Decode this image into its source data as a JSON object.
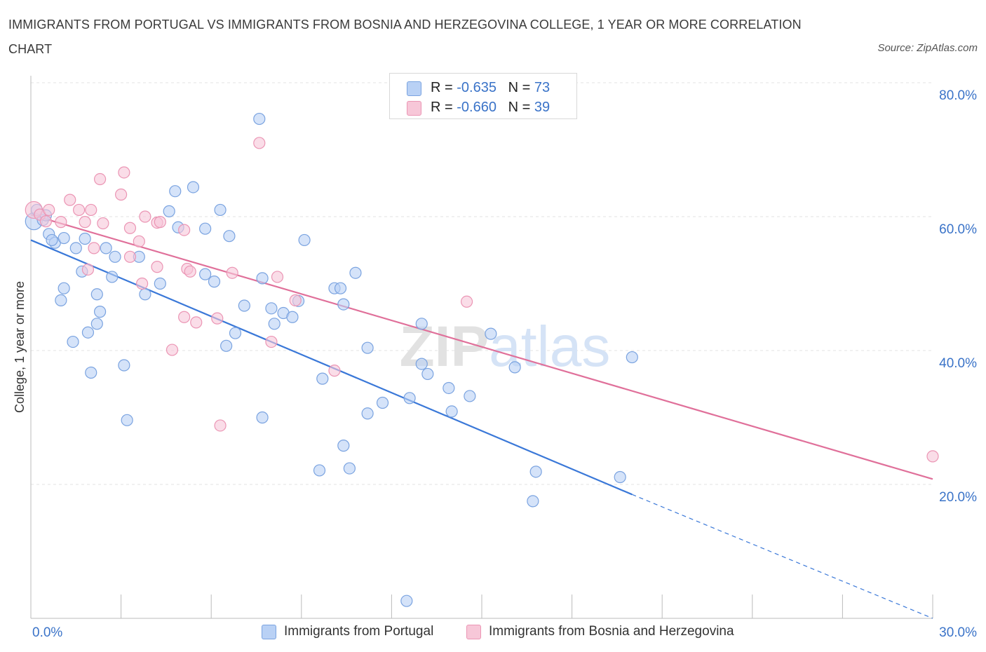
{
  "title": "IMMIGRANTS FROM PORTUGAL VS IMMIGRANTS FROM BOSNIA AND HERZEGOVINA COLLEGE, 1 YEAR OR MORE CORRELATION CHART",
  "source": "Source: ZipAtlas.com",
  "colors": {
    "blue": "#3a78d8",
    "blue_fill": "#b9d1f5",
    "blue_stroke": "#7aa3e0",
    "pink": "#e0709a",
    "pink_fill": "#f7c7d8",
    "pink_stroke": "#eb95b4",
    "tick_label": "#3a73c8",
    "grid": "#e3e3e3"
  },
  "legend": {
    "rows": [
      {
        "r_label": "R = ",
        "r_value": "-0.635",
        "n_label": "N = ",
        "n_value": "73"
      },
      {
        "r_label": "R = ",
        "r_value": "-0.660",
        "n_label": "N = ",
        "n_value": "39"
      }
    ]
  },
  "bottom_legend": [
    "Immigrants from Portugal",
    "Immigrants from Bosnia and Herzegovina"
  ],
  "chart_data": {
    "type": "scatter",
    "title": "IMMIGRANTS FROM PORTUGAL VS IMMIGRANTS FROM BOSNIA AND HERZEGOVINA COLLEGE, 1 YEAR OR MORE CORRELATION CHART",
    "xlabel": "",
    "ylabel": "College, 1 year or more",
    "xlim": [
      0,
      30
    ],
    "ylim": [
      0,
      80
    ],
    "x_tick_labels": [
      "0.0%",
      "30.0%"
    ],
    "y_ticks": [
      20,
      40,
      60,
      80
    ],
    "y_tick_labels": [
      "20.0%",
      "40.0%",
      "60.0%",
      "80.0%"
    ],
    "grid": true,
    "watermark": "ZIPatlas",
    "series": [
      {
        "name": "Immigrants from Portugal",
        "color": "#3a78d8",
        "trend": {
          "x0": 0,
          "y0": 56.5,
          "x1": 20,
          "y1": 18.5,
          "dashed_to_x": 30,
          "dashed_to_y": 0
        },
        "points": [
          [
            0.1,
            59.3
          ],
          [
            0.2,
            61.0
          ],
          [
            0.4,
            59.5
          ],
          [
            0.5,
            60.2
          ],
          [
            0.6,
            57.4
          ],
          [
            0.8,
            56.1
          ],
          [
            0.7,
            56.5
          ],
          [
            1.1,
            56.8
          ],
          [
            1.5,
            55.3
          ],
          [
            1.8,
            56.7
          ],
          [
            2.5,
            55.3
          ],
          [
            1.7,
            51.8
          ],
          [
            2.8,
            54.0
          ],
          [
            3.6,
            54.0
          ],
          [
            2.7,
            51.0
          ],
          [
            3.8,
            48.4
          ],
          [
            4.3,
            50.0
          ],
          [
            4.6,
            60.8
          ],
          [
            4.8,
            63.8
          ],
          [
            4.9,
            58.4
          ],
          [
            5.4,
            64.4
          ],
          [
            5.8,
            58.2
          ],
          [
            6.3,
            61.0
          ],
          [
            6.6,
            57.1
          ],
          [
            5.8,
            51.4
          ],
          [
            6.1,
            50.3
          ],
          [
            1.1,
            49.3
          ],
          [
            1.0,
            47.5
          ],
          [
            2.2,
            48.4
          ],
          [
            2.3,
            45.8
          ],
          [
            2.2,
            44.0
          ],
          [
            1.9,
            42.7
          ],
          [
            1.4,
            41.3
          ],
          [
            2.0,
            36.7
          ],
          [
            3.1,
            37.8
          ],
          [
            3.2,
            29.6
          ],
          [
            6.5,
            40.7
          ],
          [
            6.8,
            42.6
          ],
          [
            7.1,
            46.7
          ],
          [
            7.7,
            50.8
          ],
          [
            7.7,
            30.0
          ],
          [
            8.0,
            46.3
          ],
          [
            8.1,
            44.0
          ],
          [
            8.4,
            45.6
          ],
          [
            8.7,
            45.0
          ],
          [
            8.9,
            47.4
          ],
          [
            9.1,
            56.5
          ],
          [
            9.7,
            35.8
          ],
          [
            10.1,
            49.3
          ],
          [
            10.3,
            49.3
          ],
          [
            10.4,
            46.9
          ],
          [
            10.8,
            51.6
          ],
          [
            11.2,
            40.4
          ],
          [
            10.4,
            25.8
          ],
          [
            10.6,
            22.4
          ],
          [
            7.6,
            74.6
          ],
          [
            9.6,
            22.1
          ],
          [
            11.7,
            32.2
          ],
          [
            11.2,
            30.6
          ],
          [
            12.6,
            32.9
          ],
          [
            13.0,
            38.0
          ],
          [
            13.2,
            36.5
          ],
          [
            13.9,
            34.4
          ],
          [
            14.0,
            30.9
          ],
          [
            13.0,
            44.0
          ],
          [
            14.6,
            33.2
          ],
          [
            15.3,
            42.5
          ],
          [
            16.1,
            37.5
          ],
          [
            16.8,
            21.9
          ],
          [
            16.7,
            17.5
          ],
          [
            19.6,
            21.1
          ],
          [
            20.0,
            39.0
          ],
          [
            12.5,
            2.6
          ]
        ]
      },
      {
        "name": "Immigrants from Bosnia and Herzegovina",
        "color": "#e0709a",
        "trend": {
          "x0": 0,
          "y0": 60.3,
          "x1": 30,
          "y1": 20.8
        },
        "points": [
          [
            0.1,
            61.0
          ],
          [
            0.3,
            60.3
          ],
          [
            0.5,
            59.3
          ],
          [
            1.0,
            59.2
          ],
          [
            0.6,
            61.0
          ],
          [
            1.3,
            62.5
          ],
          [
            1.6,
            61.0
          ],
          [
            1.8,
            59.2
          ],
          [
            2.0,
            61.0
          ],
          [
            2.3,
            65.6
          ],
          [
            2.4,
            59.0
          ],
          [
            3.0,
            63.3
          ],
          [
            3.1,
            66.6
          ],
          [
            3.3,
            58.3
          ],
          [
            3.6,
            56.3
          ],
          [
            3.8,
            60.0
          ],
          [
            4.2,
            59.1
          ],
          [
            2.1,
            55.3
          ],
          [
            1.9,
            52.1
          ],
          [
            3.3,
            54.0
          ],
          [
            3.7,
            50.0
          ],
          [
            4.2,
            52.5
          ],
          [
            4.3,
            59.2
          ],
          [
            5.1,
            58.0
          ],
          [
            5.2,
            52.2
          ],
          [
            5.3,
            51.8
          ],
          [
            5.1,
            45.0
          ],
          [
            4.7,
            40.1
          ],
          [
            5.5,
            44.2
          ],
          [
            6.2,
            44.8
          ],
          [
            6.7,
            51.6
          ],
          [
            6.3,
            28.8
          ],
          [
            7.6,
            71.0
          ],
          [
            8.2,
            51.0
          ],
          [
            8.0,
            41.3
          ],
          [
            8.8,
            47.5
          ],
          [
            10.1,
            37.0
          ],
          [
            14.5,
            47.3
          ],
          [
            30.0,
            24.2
          ]
        ]
      }
    ]
  }
}
